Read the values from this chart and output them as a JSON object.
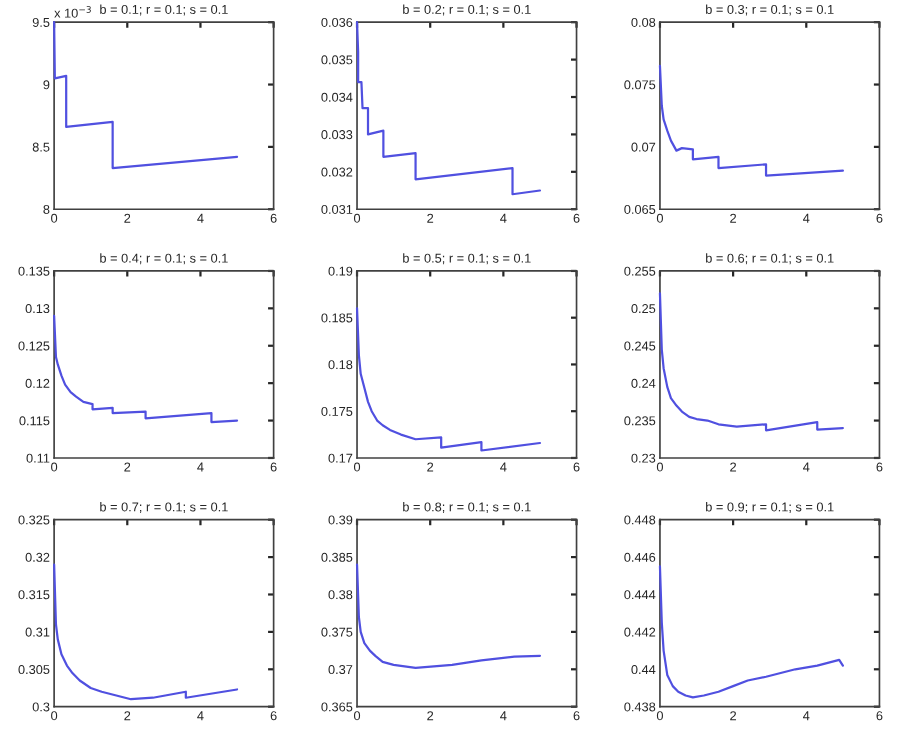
{
  "chart_data": [
    {
      "type": "line",
      "title": "b = 0.1; r = 0.1; s = 0.1",
      "annotations": [
        "x 10$^{−3}$"
      ],
      "xlim": [
        0,
        6
      ],
      "xticks": [
        0,
        2,
        4,
        6
      ],
      "ylim": [
        8,
        9.5
      ],
      "yticks": [
        8,
        8.5,
        9,
        9.5
      ],
      "grid": false,
      "legend": false,
      "series": [
        {
          "color": "#5050e0",
          "x": [
            0,
            0.02,
            0.33,
            0.33,
            1.6,
            1.6,
            5
          ],
          "values": [
            9.5,
            9.05,
            9.07,
            8.66,
            8.7,
            8.33,
            8.42
          ]
        }
      ]
    },
    {
      "type": "line",
      "title": "b = 0.2; r = 0.1; s = 0.1",
      "xlim": [
        0,
        6
      ],
      "xticks": [
        0,
        2,
        4,
        6
      ],
      "ylim": [
        0.031,
        0.036
      ],
      "yticks": [
        0.031,
        0.032,
        0.033,
        0.034,
        0.035,
        0.036
      ],
      "grid": false,
      "legend": false,
      "series": [
        {
          "color": "#5050e0",
          "x": [
            0,
            0.03,
            0.03,
            0.12,
            0.15,
            0.3,
            0.3,
            0.72,
            0.72,
            1.6,
            1.6,
            4.25,
            4.25,
            5
          ],
          "values": [
            0.036,
            0.0352,
            0.0344,
            0.0344,
            0.0337,
            0.0337,
            0.033,
            0.0331,
            0.0324,
            0.0325,
            0.0318,
            0.0321,
            0.0314,
            0.0315
          ]
        }
      ]
    },
    {
      "type": "line",
      "title": "b = 0.3; r = 0.1; s = 0.1",
      "xlim": [
        0,
        6
      ],
      "xticks": [
        0,
        2,
        4,
        6
      ],
      "ylim": [
        0.065,
        0.08
      ],
      "yticks": [
        0.065,
        0.07,
        0.075,
        0.08
      ],
      "grid": false,
      "legend": false,
      "series": [
        {
          "color": "#5050e0",
          "x": [
            0,
            0.05,
            0.1,
            0.2,
            0.3,
            0.45,
            0.6,
            0.9,
            0.9,
            1.6,
            1.6,
            2.9,
            2.9,
            5
          ],
          "values": [
            0.0765,
            0.0733,
            0.0722,
            0.0713,
            0.0705,
            0.0697,
            0.0699,
            0.0698,
            0.069,
            0.0692,
            0.0683,
            0.0686,
            0.0677,
            0.0681
          ]
        }
      ]
    },
    {
      "type": "line",
      "title": "b = 0.4; r = 0.1; s = 0.1",
      "xlim": [
        0,
        6
      ],
      "xticks": [
        0,
        2,
        4,
        6
      ],
      "ylim": [
        0.11,
        0.135
      ],
      "yticks": [
        0.11,
        0.115,
        0.12,
        0.125,
        0.13,
        0.135
      ],
      "grid": false,
      "legend": false,
      "series": [
        {
          "color": "#5050e0",
          "x": [
            0,
            0.05,
            0.1,
            0.2,
            0.3,
            0.45,
            0.6,
            0.8,
            1.05,
            1.05,
            1.6,
            1.6,
            2.5,
            2.5,
            4.3,
            4.3,
            5
          ],
          "values": [
            0.129,
            0.1235,
            0.1225,
            0.121,
            0.1198,
            0.1188,
            0.1182,
            0.1175,
            0.1172,
            0.1165,
            0.1167,
            0.116,
            0.1162,
            0.1153,
            0.116,
            0.1148,
            0.115
          ]
        }
      ]
    },
    {
      "type": "line",
      "title": "b = 0.5; r = 0.1; s = 0.1",
      "xlim": [
        0,
        6
      ],
      "xticks": [
        0,
        2,
        4,
        6
      ],
      "ylim": [
        0.17,
        0.19
      ],
      "yticks": [
        0.17,
        0.175,
        0.18,
        0.185,
        0.19
      ],
      "grid": false,
      "legend": false,
      "series": [
        {
          "color": "#5050e0",
          "x": [
            0,
            0.05,
            0.1,
            0.2,
            0.3,
            0.4,
            0.55,
            0.7,
            0.9,
            1.2,
            1.6,
            2.3,
            2.3,
            3.4,
            3.4,
            5
          ],
          "values": [
            0.186,
            0.181,
            0.179,
            0.1775,
            0.176,
            0.175,
            0.174,
            0.1735,
            0.173,
            0.1725,
            0.172,
            0.1722,
            0.1711,
            0.1717,
            0.1708,
            0.1716
          ]
        }
      ]
    },
    {
      "type": "line",
      "title": "b = 0.6; r = 0.1; s = 0.1",
      "xlim": [
        0,
        6
      ],
      "xticks": [
        0,
        2,
        4,
        6
      ],
      "ylim": [
        0.23,
        0.255
      ],
      "yticks": [
        0.23,
        0.235,
        0.24,
        0.245,
        0.25,
        0.255
      ],
      "grid": false,
      "legend": false,
      "series": [
        {
          "color": "#5050e0",
          "x": [
            0,
            0.05,
            0.1,
            0.2,
            0.3,
            0.45,
            0.6,
            0.8,
            1.0,
            1.3,
            1.6,
            2.1,
            2.9,
            2.9,
            4.3,
            4.3,
            5
          ],
          "values": [
            0.252,
            0.2445,
            0.242,
            0.2395,
            0.238,
            0.237,
            0.2362,
            0.2355,
            0.2352,
            0.235,
            0.2345,
            0.2342,
            0.2345,
            0.2337,
            0.2348,
            0.2338,
            0.234
          ]
        }
      ]
    },
    {
      "type": "line",
      "title": "b = 0.7; r = 0.1; s = 0.1",
      "xlim": [
        0,
        6
      ],
      "xticks": [
        0,
        2,
        4,
        6
      ],
      "ylim": [
        0.3,
        0.325
      ],
      "yticks": [
        0.3,
        0.305,
        0.31,
        0.315,
        0.32,
        0.325
      ],
      "grid": false,
      "legend": false,
      "series": [
        {
          "color": "#5050e0",
          "x": [
            0,
            0.05,
            0.1,
            0.2,
            0.35,
            0.5,
            0.7,
            1.0,
            1.3,
            1.7,
            2.1,
            2.7,
            3.6,
            3.6,
            5
          ],
          "values": [
            0.319,
            0.311,
            0.309,
            0.307,
            0.3055,
            0.3045,
            0.3035,
            0.3025,
            0.302,
            0.3015,
            0.301,
            0.3012,
            0.302,
            0.3012,
            0.3023
          ]
        }
      ]
    },
    {
      "type": "line",
      "title": "b = 0.8; r = 0.1; s = 0.1",
      "xlim": [
        0,
        6
      ],
      "xticks": [
        0,
        2,
        4,
        6
      ],
      "ylim": [
        0.365,
        0.39
      ],
      "yticks": [
        0.365,
        0.37,
        0.375,
        0.38,
        0.385,
        0.39
      ],
      "grid": false,
      "legend": false,
      "series": [
        {
          "color": "#5050e0",
          "x": [
            0,
            0.05,
            0.1,
            0.2,
            0.35,
            0.5,
            0.7,
            1.0,
            1.6,
            2.6,
            3.4,
            4.3,
            5
          ],
          "values": [
            0.384,
            0.377,
            0.375,
            0.3735,
            0.3725,
            0.3718,
            0.371,
            0.3706,
            0.3702,
            0.3706,
            0.3712,
            0.3717,
            0.3718
          ]
        }
      ]
    },
    {
      "type": "line",
      "title": "b = 0.9; r = 0.1; s = 0.1",
      "xlim": [
        0,
        6
      ],
      "xticks": [
        0,
        2,
        4,
        6
      ],
      "ylim": [
        0.438,
        0.448
      ],
      "yticks": [
        0.438,
        0.44,
        0.442,
        0.444,
        0.446,
        0.448
      ],
      "grid": false,
      "legend": false,
      "series": [
        {
          "color": "#5050e0",
          "x": [
            0,
            0.05,
            0.1,
            0.2,
            0.35,
            0.5,
            0.7,
            0.9,
            1.2,
            1.6,
            2.0,
            2.4,
            2.9,
            3.7,
            4.3,
            4.9,
            5
          ],
          "values": [
            0.4455,
            0.4425,
            0.441,
            0.4397,
            0.4391,
            0.4388,
            0.4386,
            0.4385,
            0.4386,
            0.4388,
            0.4391,
            0.4394,
            0.4396,
            0.44,
            0.4402,
            0.4405,
            0.4402
          ]
        }
      ]
    }
  ]
}
